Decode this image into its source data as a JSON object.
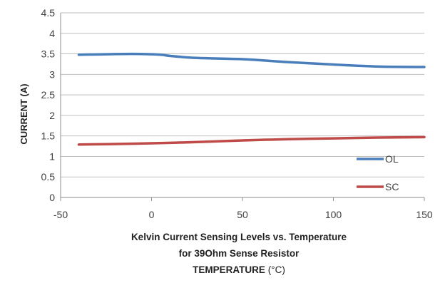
{
  "chart_data": {
    "type": "line",
    "xlabel_lines": [
      "Kelvin Current Sensing Levels vs. Temperature",
      "for 39Ohm Sense Resistor",
      "TEMPERATURE"
    ],
    "xlabel_unit": "(°C)",
    "ylabel": "CURRENT (A)",
    "xlim": [
      -50,
      150
    ],
    "ylim": [
      0,
      4.5
    ],
    "xticks": [
      -50,
      0,
      50,
      100,
      150
    ],
    "yticks": [
      0,
      0.5,
      1,
      1.5,
      2,
      2.5,
      3,
      3.5,
      4,
      4.5
    ],
    "grid": true,
    "legend_position": "bottom-right",
    "series": [
      {
        "name": "OL",
        "color": "#4a7ebb",
        "x": [
          -40,
          -25,
          -10,
          5,
          10,
          25,
          50,
          75,
          100,
          125,
          150
        ],
        "y": [
          3.48,
          3.49,
          3.5,
          3.48,
          3.45,
          3.4,
          3.37,
          3.3,
          3.24,
          3.19,
          3.18
        ]
      },
      {
        "name": "SC",
        "color": "#be4b48",
        "x": [
          -40,
          -25,
          0,
          25,
          50,
          75,
          100,
          125,
          150
        ],
        "y": [
          1.29,
          1.3,
          1.32,
          1.35,
          1.39,
          1.42,
          1.44,
          1.46,
          1.47
        ]
      }
    ]
  }
}
